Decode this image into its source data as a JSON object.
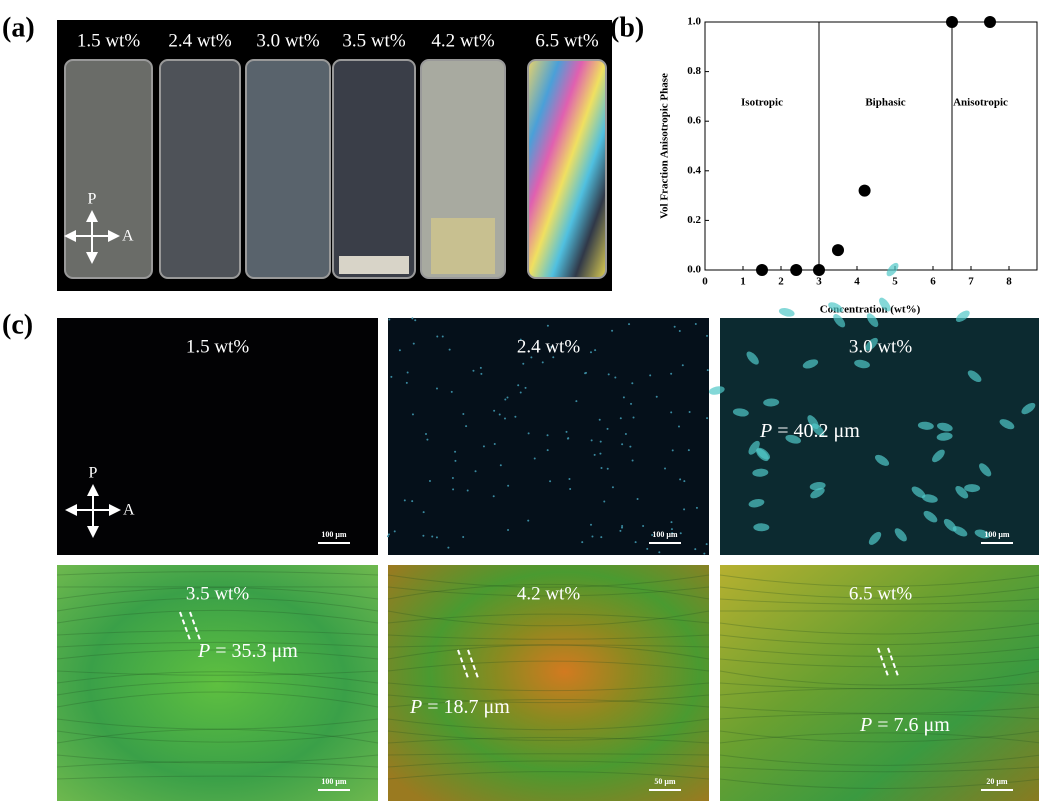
{
  "panel_a": {
    "label": "(a)",
    "samples": [
      "1.5 wt%",
      "2.4 wt%",
      "3.0 wt%",
      "3.5 wt%",
      "4.2 wt%",
      "6.5 wt%"
    ],
    "polarizer": "P",
    "analyzer": "A"
  },
  "chart_data": {
    "type": "scatter",
    "label": "(b)",
    "x_label": "Concentration (wt%)",
    "y_label": "Vol Fraction Anisotropic Phase",
    "x": [
      1.5,
      2.4,
      3.0,
      3.5,
      4.2,
      6.5,
      7.5
    ],
    "values": [
      0,
      0,
      0,
      0.08,
      0.32,
      1.0,
      1.0
    ],
    "color": "#000000",
    "xlim": [
      0,
      8
    ],
    "xticks": [
      0,
      1,
      2,
      3,
      4,
      5,
      6,
      7,
      8
    ],
    "ylim": [
      0,
      1
    ],
    "yticks": [
      {
        "value": 0,
        "label": "0.0"
      },
      {
        "value": 0.2,
        "label": "0.2"
      },
      {
        "value": 0.4,
        "label": "0.4"
      },
      {
        "value": 0.6,
        "label": "0.6"
      },
      {
        "value": 0.8,
        "label": "0.8"
      },
      {
        "value": 1.0,
        "label": "1.0"
      }
    ],
    "boundaries": [
      3,
      6.5
    ],
    "regions": [
      "Isotropic",
      "Biphasic",
      "Anisotropic"
    ]
  },
  "panel_c": {
    "label": "(c)",
    "polarizer": "P",
    "analyzer": "A",
    "images": [
      {
        "title": "1.5 wt%",
        "scale_bar": "100 μm"
      },
      {
        "title": "2.4 wt%",
        "scale_bar": "100 μm"
      },
      {
        "title": "3.0 wt%",
        "scale_bar": "100 μm",
        "pitch": {
          "symbol": "P",
          "text": "= 40.2 μm"
        }
      },
      {
        "title": "3.5 wt%",
        "scale_bar": "100 μm",
        "pitch": {
          "symbol": "P",
          "text": "= 35.3 μm"
        }
      },
      {
        "title": "4.2 wt%",
        "scale_bar": "50 μm",
        "pitch": {
          "symbol": "P",
          "text": "= 18.7 μm"
        }
      },
      {
        "title": "6.5 wt%",
        "scale_bar": "20 μm",
        "pitch": {
          "symbol": "P",
          "text": "= 7.6 μm"
        }
      }
    ]
  }
}
